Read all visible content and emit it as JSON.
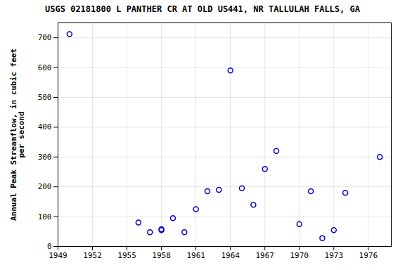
{
  "chart_data": {
    "type": "scatter",
    "title": "USGS 02181800 L PANTHER CR AT OLD US441, NR TALLULAH FALLS, GA",
    "ylabel": "Annual Peak Streamflow, in cubic feet\nper second",
    "x": [
      1950,
      1956,
      1957,
      1958,
      1958,
      1959,
      1960,
      1961,
      1962,
      1963,
      1964,
      1965,
      1966,
      1967,
      1968,
      1970,
      1971,
      1972,
      1973,
      1974,
      1977
    ],
    "values": [
      712,
      80,
      48,
      55,
      58,
      95,
      48,
      125,
      185,
      190,
      590,
      195,
      140,
      260,
      320,
      75,
      185,
      28,
      55,
      180,
      300
    ],
    "color": "#0000CC",
    "marker": "circle",
    "xlim": [
      1949,
      1978
    ],
    "ylim": [
      0,
      750
    ],
    "xticks": [
      1949,
      1952,
      1955,
      1958,
      1961,
      1964,
      1967,
      1970,
      1973,
      1976
    ],
    "yticks": [
      0,
      100,
      200,
      300,
      400,
      500,
      600,
      700
    ],
    "grid": true
  }
}
